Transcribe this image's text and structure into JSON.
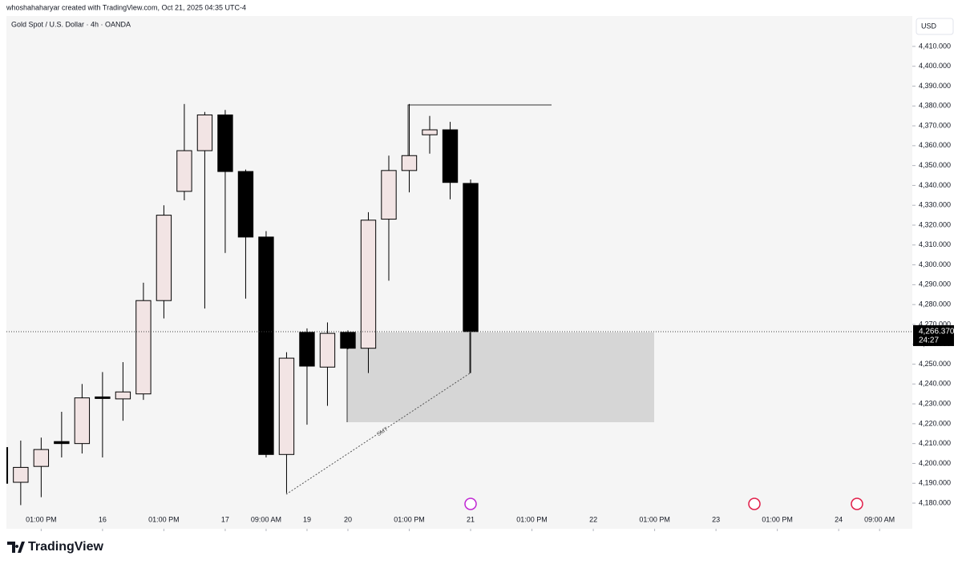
{
  "header": {
    "credit": "whoshahaharyar created with TradingView.com, Oct 21, 2025 04:35 UTC-4",
    "logo": "TradingView"
  },
  "chart_data": {
    "type": "candlestick",
    "title": "Gold Spot / U.S. Dollar · 4h · OANDA",
    "currency": "USD",
    "annotation": "SMT",
    "up_color": "#f2e4e4",
    "down_color": "#000000",
    "x": [
      -1,
      0,
      1,
      2,
      3,
      4,
      5,
      6,
      7,
      8,
      9,
      10,
      11,
      12,
      13,
      14,
      15,
      16,
      17,
      18,
      19,
      20,
      21,
      22
    ],
    "open": [
      4208,
      4190.5,
      4198.5,
      4211,
      4210,
      4233.5,
      4232.5,
      4235,
      4282,
      4337,
      4357.5,
      4375.5,
      4347,
      4314,
      4204.5,
      4266,
      4248.5,
      4266,
      4258,
      4323,
      4347.5,
      4365.5,
      4368,
      4341
    ],
    "high": [
      4210,
      4211.5,
      4213,
      4226,
      4240,
      4246,
      4251,
      4291,
      4330,
      4381,
      4377,
      4378,
      4348,
      4317,
      4256,
      4268,
      4271,
      4267,
      4326.5,
      4355,
      4381,
      4375,
      4372,
      4343
    ],
    "low": [
      4189,
      4179,
      4183,
      4203,
      4205,
      4203,
      4221.5,
      4232,
      4273,
      4332.5,
      4278,
      4306,
      4283,
      4203,
      4185,
      4219.5,
      4229,
      4257.5,
      4245.5,
      4292,
      4336.5,
      4356,
      4333,
      4245.5
    ],
    "close": [
      4190,
      4198,
      4207,
      4210,
      4233,
      4233,
      4236,
      4282,
      4325,
      4357.5,
      4375.5,
      4347,
      4314,
      4204.5,
      4253,
      4249,
      4265.5,
      4258,
      4322.5,
      4347.5,
      4355,
      4368,
      4341.5,
      4266.37
    ],
    "last_price": {
      "value": 4266.37,
      "label": "4,266.370"
    },
    "countdown": "24:27",
    "xlim": [
      -0.7,
      43.6
    ],
    "ylim": [
      4167.1,
      4425.3
    ],
    "xticks": [
      {
        "value": 1,
        "label": "01:00 PM"
      },
      {
        "value": 4,
        "label": "16"
      },
      {
        "value": 7,
        "label": "01:00 PM"
      },
      {
        "value": 10,
        "label": "17"
      },
      {
        "value": 12,
        "label": "09:00 AM"
      },
      {
        "value": 14,
        "label": "19"
      },
      {
        "value": 16,
        "label": "20"
      },
      {
        "value": 19,
        "label": "01:00 PM"
      },
      {
        "value": 22,
        "label": "21"
      },
      {
        "value": 25,
        "label": "01:00 PM"
      },
      {
        "value": 28,
        "label": "22"
      },
      {
        "value": 31,
        "label": "01:00 PM"
      },
      {
        "value": 34,
        "label": "23"
      },
      {
        "value": 37,
        "label": "01:00 PM"
      },
      {
        "value": 40,
        "label": "24"
      },
      {
        "value": 42,
        "label": "09:00 AM"
      }
    ],
    "yticks": [
      {
        "value": 4180,
        "label": "4,180.000"
      },
      {
        "value": 4190,
        "label": "4,190.000"
      },
      {
        "value": 4200,
        "label": "4,200.000"
      },
      {
        "value": 4210,
        "label": "4,210.000"
      },
      {
        "value": 4220,
        "label": "4,220.000"
      },
      {
        "value": 4230,
        "label": "4,230.000"
      },
      {
        "value": 4240,
        "label": "4,240.000"
      },
      {
        "value": 4250,
        "label": "4,250.000"
      },
      {
        "value": 4260,
        "label": "4,260.000"
      },
      {
        "value": 4270,
        "label": "4,270.000"
      },
      {
        "value": 4280,
        "label": "4,280.000"
      },
      {
        "value": 4290,
        "label": "4,290.000"
      },
      {
        "value": 4300,
        "label": "4,300.000"
      },
      {
        "value": 4310,
        "label": "4,310.000"
      },
      {
        "value": 4320,
        "label": "4,320.000"
      },
      {
        "value": 4330,
        "label": "4,330.000"
      },
      {
        "value": 4340,
        "label": "4,340.000"
      },
      {
        "value": 4350,
        "label": "4,350.000"
      },
      {
        "value": 4360,
        "label": "4,360.000"
      },
      {
        "value": 4370,
        "label": "4,370.000"
      },
      {
        "value": 4380,
        "label": "4,380.000"
      },
      {
        "value": 4390,
        "label": "4,390.000"
      },
      {
        "value": 4400,
        "label": "4,400.000"
      },
      {
        "value": 4410,
        "label": "4,410.000"
      }
    ]
  }
}
